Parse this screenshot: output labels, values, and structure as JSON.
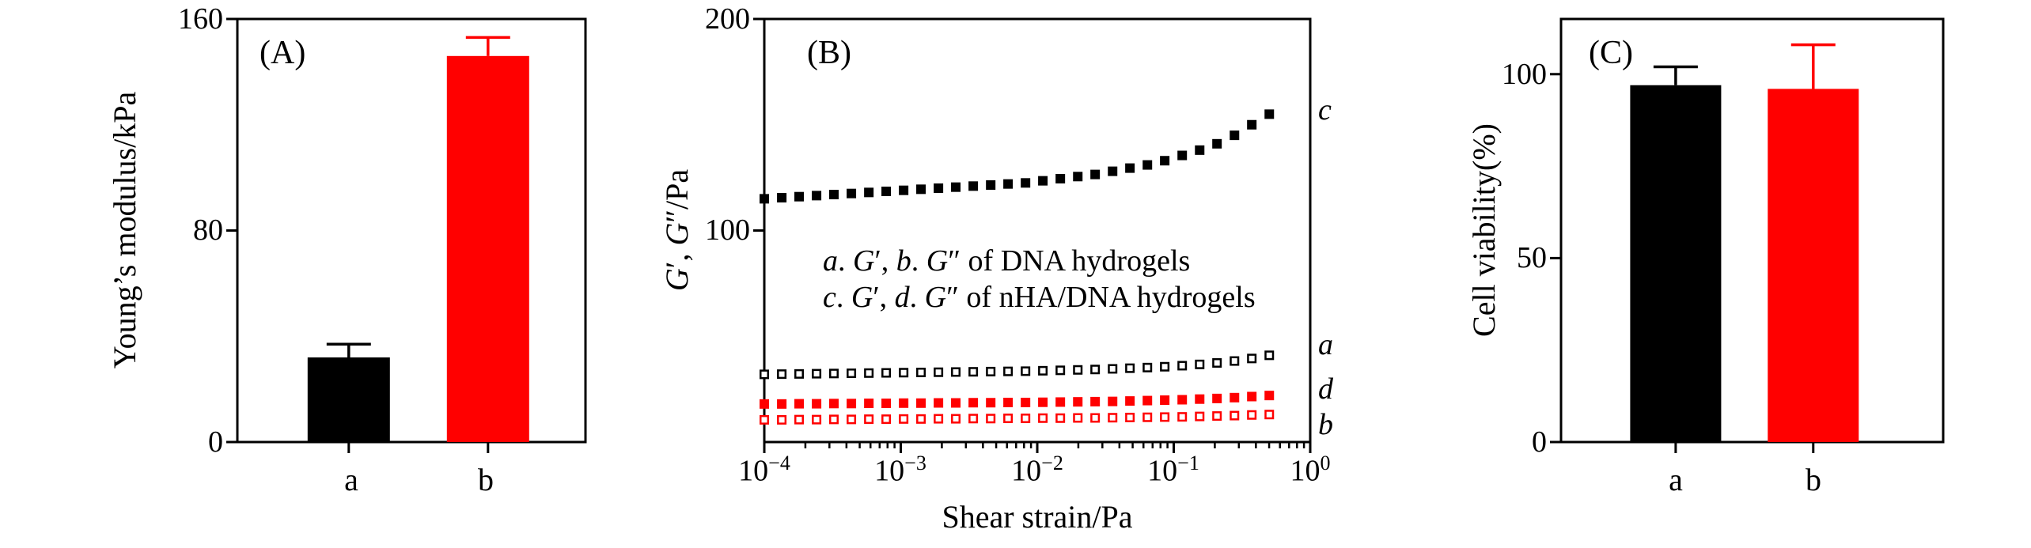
{
  "figure": {
    "background": "#ffffff",
    "colors": {
      "black": "#000000",
      "red": "#ff0000"
    }
  },
  "chart_data": [
    {
      "id": "A",
      "type": "bar",
      "panel_label": "(A)",
      "ylabel": "Young’s modulus/kPa",
      "categories": [
        "a",
        "b"
      ],
      "values": [
        32,
        146
      ],
      "errors": [
        5,
        7
      ],
      "bar_colors": [
        "#000000",
        "#ff0000"
      ],
      "ylim": [
        0,
        160
      ],
      "yticks": [
        0,
        80,
        160
      ]
    },
    {
      "id": "B",
      "type": "scatter",
      "panel_label": "(B)",
      "xlabel": "Shear strain/Pa",
      "xscale": "log",
      "xlim_log": [
        -4,
        0
      ],
      "xticks_log": [
        -4,
        -3,
        -2,
        -1,
        0
      ],
      "xtick_labels": [
        {
          "base": "10",
          "exp": "−4"
        },
        {
          "base": "10",
          "exp": "−3"
        },
        {
          "base": "10",
          "exp": "−2"
        },
        {
          "base": "10",
          "exp": "−1"
        },
        {
          "base": "10",
          "exp": "0"
        }
      ],
      "ylim": [
        0,
        200
      ],
      "yticks": [
        100,
        200
      ],
      "ylabel_segments": [
        {
          "t": "G",
          "i": true
        },
        {
          "t": "′, ",
          "i": false
        },
        {
          "t": "G",
          "i": true
        },
        {
          "t": "″/Pa",
          "i": false
        }
      ],
      "legend_lines": [
        {
          "segments": [
            {
              "t": "a",
              "i": true
            },
            {
              "t": ". ",
              "i": false
            },
            {
              "t": "G",
              "i": true
            },
            {
              "t": "′, ",
              "i": false
            },
            {
              "t": "b",
              "i": true
            },
            {
              "t": ". ",
              "i": false
            },
            {
              "t": "G",
              "i": true
            },
            {
              "t": "″ of DNA hydrogels",
              "i": false
            }
          ]
        },
        {
          "segments": [
            {
              "t": "c",
              "i": true
            },
            {
              "t": ". ",
              "i": false
            },
            {
              "t": "G",
              "i": true
            },
            {
              "t": "′, ",
              "i": false
            },
            {
              "t": "d",
              "i": true
            },
            {
              "t": ". ",
              "i": false
            },
            {
              "t": "G",
              "i": true
            },
            {
              "t": "″ of nHA/DNA hydrogels",
              "i": false
            }
          ]
        }
      ],
      "x_log10": [
        -4.0,
        -3.872,
        -3.745,
        -3.617,
        -3.49,
        -3.362,
        -3.234,
        -3.107,
        -2.979,
        -2.852,
        -2.724,
        -2.597,
        -2.469,
        -2.341,
        -2.214,
        -2.086,
        -1.959,
        -1.831,
        -1.703,
        -1.576,
        -1.448,
        -1.321,
        -1.193,
        -1.066,
        -0.938,
        -0.81,
        -0.683,
        -0.555,
        -0.428,
        -0.3
      ],
      "series": [
        {
          "name": "c",
          "description": "G′ of nHA/DNA hydrogels",
          "marker": "filled-square",
          "color": "#000000",
          "y": [
            115,
            115.5,
            116,
            116.5,
            117,
            117.5,
            118,
            118.5,
            119,
            119.5,
            120,
            120.5,
            121,
            121.5,
            122,
            122.5,
            123.5,
            124.5,
            125.5,
            126.5,
            128,
            129.5,
            131,
            133,
            135.5,
            138,
            141,
            145,
            150,
            155
          ]
        },
        {
          "name": "a",
          "description": "G′ of DNA hydrogels",
          "marker": "open-square",
          "color": "#000000",
          "y": [
            32,
            32.1,
            32.2,
            32.3,
            32.4,
            32.5,
            32.6,
            32.7,
            32.8,
            32.9,
            33,
            33.1,
            33.2,
            33.3,
            33.4,
            33.5,
            33.7,
            33.9,
            34.1,
            34.3,
            34.6,
            34.9,
            35.2,
            35.6,
            36.1,
            36.7,
            37.4,
            38.3,
            39.5,
            41
          ]
        },
        {
          "name": "d",
          "description": "G″ of nHA/DNA hydrogels",
          "marker": "filled-square",
          "color": "#ff0000",
          "y": [
            18,
            18,
            18.1,
            18.1,
            18.2,
            18.2,
            18.3,
            18.3,
            18.4,
            18.4,
            18.5,
            18.5,
            18.6,
            18.6,
            18.7,
            18.7,
            18.8,
            18.9,
            19,
            19.1,
            19.2,
            19.4,
            19.6,
            19.8,
            20,
            20.3,
            20.6,
            21,
            21.5,
            22
          ]
        },
        {
          "name": "b",
          "description": "G″ of DNA hydrogels",
          "marker": "open-square",
          "color": "#ff0000",
          "y": [
            10.5,
            10.5,
            10.6,
            10.6,
            10.7,
            10.7,
            10.8,
            10.8,
            10.9,
            10.9,
            11,
            11,
            11.1,
            11.1,
            11.2,
            11.2,
            11.3,
            11.3,
            11.4,
            11.4,
            11.5,
            11.6,
            11.7,
            11.8,
            11.9,
            12.1,
            12.3,
            12.5,
            12.8,
            13
          ]
        }
      ]
    },
    {
      "id": "C",
      "type": "bar",
      "panel_label": "(C)",
      "ylabel": "Cell viability(%)",
      "categories": [
        "a",
        "b"
      ],
      "values": [
        97,
        96
      ],
      "errors": [
        5,
        12
      ],
      "bar_colors": [
        "#000000",
        "#ff0000"
      ],
      "ylim": [
        0,
        115
      ],
      "yticks": [
        0,
        50,
        100
      ]
    }
  ]
}
